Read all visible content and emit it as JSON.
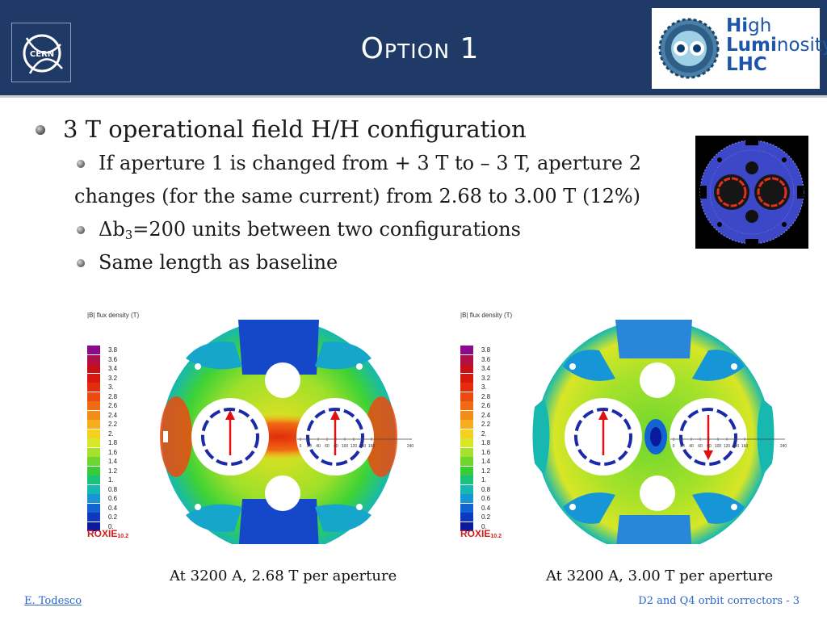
{
  "header": {
    "title": "Option 1",
    "cern_logo_text": "CERN",
    "hl_logo": {
      "line1_bold": "Hi",
      "line1_rest": "gh",
      "line2_bold": "Lumi",
      "line2_rest": "nosity",
      "line3": "LHC"
    }
  },
  "bullets": {
    "main": "3 T operational field H/H configuration",
    "sub1_line1": "If aperture 1 is changed from + 3 T to – 3 T, aperture 2",
    "sub1_line2": "changes (for the same current) from 2.68 to 3.00 T (12%)",
    "sub2_delta": "Δb",
    "sub2_subscript": "3",
    "sub2_rest": "=200 units between two configurations",
    "sub3": "Same length as baseline"
  },
  "legend": {
    "title": "|B| flux density (T)",
    "labels": [
      "3.8",
      "3.6",
      "3.4",
      "3.2",
      "3.",
      "2.8",
      "2.6",
      "2.4",
      "2.2",
      "2.",
      "1.8",
      "1.6",
      "1.4",
      "1.2",
      "1.",
      "0.8",
      "0.6",
      "0.4",
      "0.2",
      "0."
    ],
    "colors": [
      "#8a0a8a",
      "#b0104a",
      "#c4101a",
      "#d8180e",
      "#e22c0c",
      "#ec4a10",
      "#f06a14",
      "#f48c18",
      "#f8ae1c",
      "#f6d020",
      "#d8e626",
      "#a6e22a",
      "#6ed62e",
      "#38cc36",
      "#18c27a",
      "#16b8b0",
      "#1696d6",
      "#1264d0",
      "#0e38c0",
      "#0a1a9e"
    ],
    "roxie": "ROXIE",
    "roxie_version": "10.2"
  },
  "maps": {
    "left": {
      "scale_ticks": [
        "0",
        "20",
        "40",
        "60",
        "80",
        "100",
        "120",
        "140",
        "160"
      ],
      "scale_end": "240"
    },
    "right": {
      "scale_ticks": [
        "0",
        "20",
        "40",
        "60",
        "80",
        "100",
        "120",
        "140",
        "160"
      ],
      "scale_end": "240"
    }
  },
  "captions": {
    "left": "At 3200 A, 2.68 T per aperture",
    "right": "At 3200 A, 3.00 T per aperture"
  },
  "footer": {
    "author": "E. Todesco",
    "page": "D2 and Q4 orbit correctors - 3"
  }
}
